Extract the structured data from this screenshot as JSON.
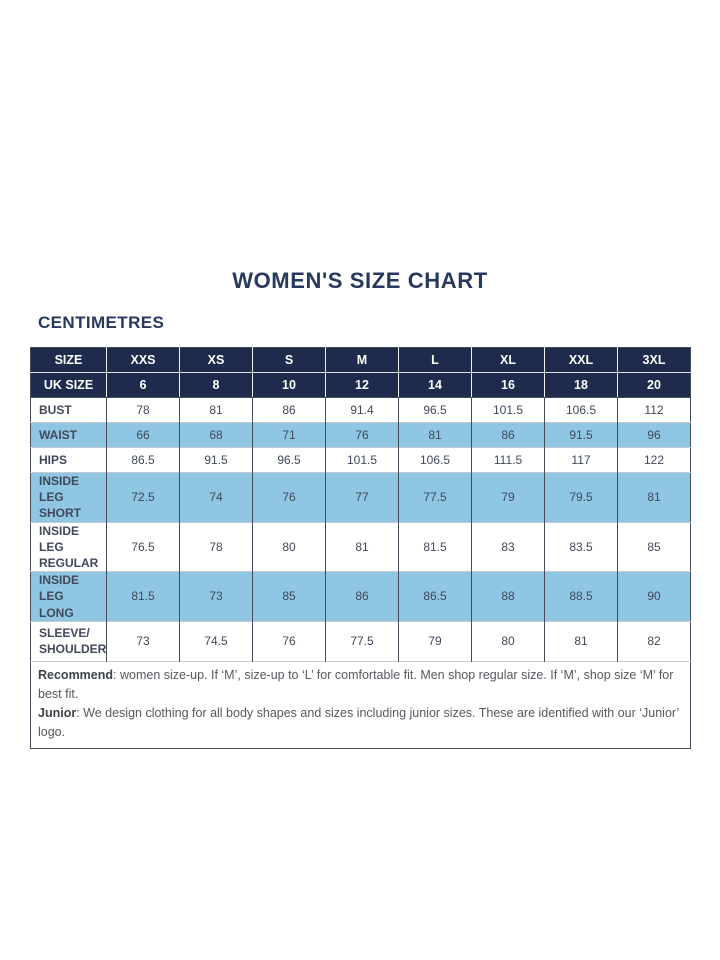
{
  "page": {
    "title": "WOMEN'S SIZE CHART",
    "unit_heading": "CENTIMETRES"
  },
  "colors": {
    "header_navy": "#1e2b4d",
    "row_blue": "#8ec6e3",
    "title_navy": "#273a5e"
  },
  "table": {
    "header_rows": [
      {
        "label": "SIZE",
        "values": [
          "XXS",
          "XS",
          "S",
          "M",
          "L",
          "XL",
          "XXL",
          "3XL"
        ]
      },
      {
        "label": "UK SIZE",
        "values": [
          "6",
          "8",
          "10",
          "12",
          "14",
          "16",
          "18",
          "20"
        ]
      }
    ],
    "rows": [
      {
        "label_lines": [
          "BUST"
        ],
        "shaded": false,
        "values": [
          "78",
          "81",
          "86",
          "91.4",
          "96.5",
          "101.5",
          "106.5",
          "112"
        ]
      },
      {
        "label_lines": [
          "WAIST"
        ],
        "shaded": true,
        "values": [
          "66",
          "68",
          "71",
          "76",
          "81",
          "86",
          "91.5",
          "96"
        ]
      },
      {
        "label_lines": [
          "HIPS"
        ],
        "shaded": false,
        "values": [
          "86.5",
          "91.5",
          "96.5",
          "101.5",
          "106.5",
          "111.5",
          "117",
          "122"
        ]
      },
      {
        "label_lines": [
          "INSIDE LEG",
          "SHORT"
        ],
        "shaded": true,
        "values": [
          "72.5",
          "74",
          "76",
          "77",
          "77.5",
          "79",
          "79.5",
          "81"
        ]
      },
      {
        "label_lines": [
          "INSIDE LEG",
          "REGULAR"
        ],
        "shaded": false,
        "values": [
          "76.5",
          "78",
          "80",
          "81",
          "81.5",
          "83",
          "83.5",
          "85"
        ]
      },
      {
        "label_lines": [
          "INSIDE LEG",
          "LONG"
        ],
        "shaded": true,
        "values": [
          "81.5",
          "73",
          "85",
          "86",
          "86.5",
          "88",
          "88.5",
          "90"
        ]
      },
      {
        "label_lines": [
          "SLEEVE/",
          "SHOULDER"
        ],
        "shaded": false,
        "values": [
          "73",
          "74.5",
          "76",
          "77.5",
          "79",
          "80",
          "81",
          "82"
        ]
      }
    ],
    "footer": {
      "line1_bold": "Recommend",
      "line1_text": ": women size-up. If ‘M’, size-up to ‘L’ for comfortable fit. Men shop regular size. If ‘M’, shop size ‘M’ for best fit.",
      "line2_bold": "Junior",
      "line2_text": ": We design clothing for all body shapes and sizes including junior sizes. These are identified with our ‘Junior’ logo."
    }
  }
}
